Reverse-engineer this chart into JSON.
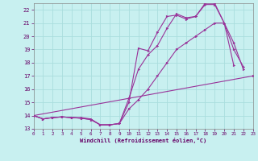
{
  "bg_color": "#c8f0f0",
  "grid_color": "#aadddd",
  "line_color": "#993399",
  "xlim": [
    0,
    23
  ],
  "ylim": [
    13,
    22.5
  ],
  "yticks": [
    13,
    14,
    15,
    16,
    17,
    18,
    19,
    20,
    21,
    22
  ],
  "xticks": [
    0,
    1,
    2,
    3,
    4,
    5,
    6,
    7,
    8,
    9,
    10,
    11,
    12,
    13,
    14,
    15,
    16,
    17,
    18,
    19,
    20,
    21,
    22,
    23
  ],
  "xlabel": "Windchill (Refroidissement éolien,°C)",
  "series": [
    {
      "x": [
        0,
        1,
        2,
        3,
        4,
        5,
        6,
        7,
        8,
        9,
        10,
        11,
        12,
        13,
        14,
        15,
        16,
        17,
        18,
        19,
        20,
        21,
        22
      ],
      "y": [
        14.0,
        13.75,
        13.85,
        13.9,
        13.85,
        13.85,
        13.75,
        13.3,
        13.3,
        13.4,
        15.3,
        17.5,
        18.6,
        19.3,
        20.6,
        21.7,
        21.4,
        21.5,
        22.5,
        22.5,
        21.0,
        19.0,
        17.7
      ]
    },
    {
      "x": [
        0,
        1,
        2,
        3,
        4,
        5,
        6,
        7,
        8,
        9,
        10,
        11,
        12,
        13,
        14,
        15,
        16,
        17,
        18,
        19,
        20,
        21
      ],
      "y": [
        14.0,
        13.75,
        13.85,
        13.9,
        13.85,
        13.8,
        13.7,
        13.3,
        13.3,
        13.4,
        15.0,
        19.1,
        18.9,
        20.3,
        21.5,
        21.6,
        21.3,
        21.5,
        22.4,
        22.4,
        21.0,
        17.8
      ]
    },
    {
      "x": [
        0,
        1,
        2,
        3,
        4,
        5,
        6,
        7,
        8,
        9,
        10,
        11,
        12,
        13,
        14,
        15,
        16,
        17,
        18,
        19,
        20,
        21,
        22
      ],
      "y": [
        14.0,
        13.75,
        13.85,
        13.9,
        13.85,
        13.8,
        13.7,
        13.3,
        13.3,
        13.4,
        14.5,
        15.2,
        16.0,
        17.0,
        18.0,
        19.0,
        19.5,
        20.0,
        20.5,
        21.0,
        21.0,
        19.5,
        17.5
      ]
    },
    {
      "x": [
        0,
        23
      ],
      "y": [
        14.0,
        17.0
      ]
    }
  ]
}
